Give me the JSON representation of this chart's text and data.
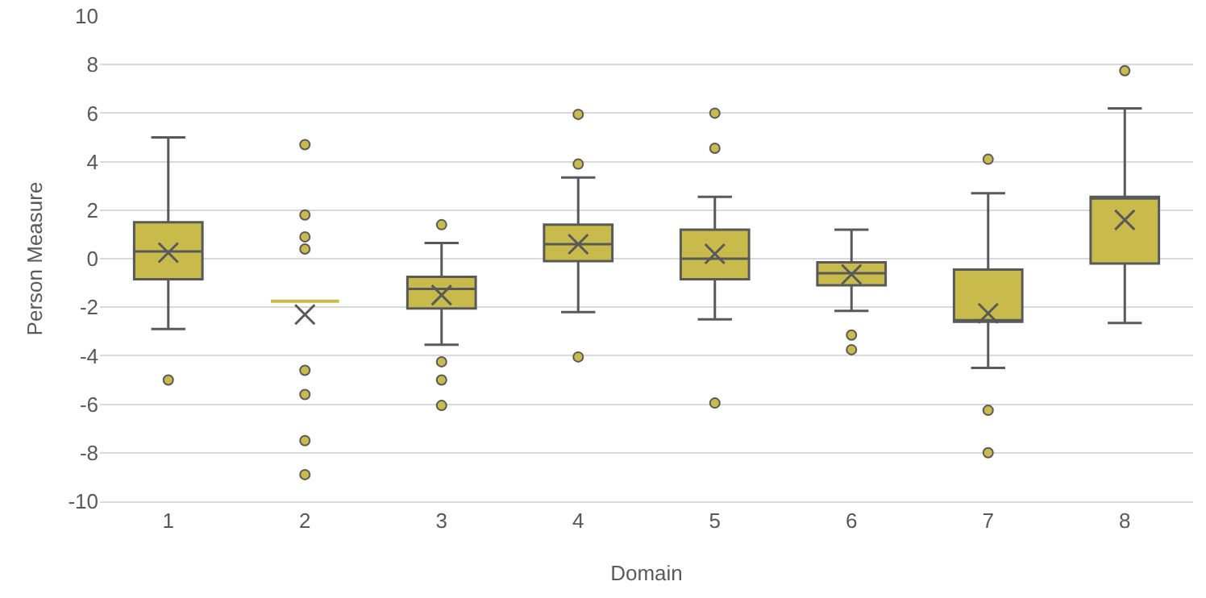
{
  "chart_data": {
    "type": "box",
    "xlabel": "Domain",
    "ylabel": "Person Measure",
    "categories": [
      "1",
      "2",
      "3",
      "4",
      "5",
      "6",
      "7",
      "8"
    ],
    "color": "#c9ba4c",
    "ylim": [
      -10,
      10
    ],
    "yticks": [
      -10,
      -8,
      -6,
      -4,
      -2,
      0,
      2,
      4,
      6,
      8,
      10
    ],
    "grid": "y",
    "boxes": [
      {
        "low": -2.9,
        "q1": -0.85,
        "median": 0.3,
        "q3": 1.5,
        "high": 5.0,
        "mean": 0.25,
        "outliers": [
          -5.0
        ]
      },
      {
        "low": -1.75,
        "q1": -1.75,
        "median": -1.75,
        "q3": -1.75,
        "high": -1.75,
        "mean": -2.3,
        "outliers": [
          4.7,
          1.8,
          0.9,
          0.4,
          -4.6,
          -5.6,
          -7.5,
          -8.9
        ]
      },
      {
        "low": -3.55,
        "q1": -2.05,
        "median": -1.25,
        "q3": -0.75,
        "high": 0.65,
        "mean": -1.5,
        "outliers": [
          1.4,
          -4.25,
          -5.0,
          -6.05
        ]
      },
      {
        "low": -2.2,
        "q1": -0.1,
        "median": 0.6,
        "q3": 1.4,
        "high": 3.35,
        "mean": 0.6,
        "outliers": [
          5.95,
          3.9,
          -4.05
        ]
      },
      {
        "low": -2.5,
        "q1": -0.85,
        "median": 0.0,
        "q3": 1.2,
        "high": 2.55,
        "mean": 0.2,
        "outliers": [
          6.0,
          4.55,
          -5.95
        ]
      },
      {
        "low": -2.15,
        "q1": -1.1,
        "median": -0.6,
        "q3": -0.15,
        "high": 1.2,
        "mean": -0.65,
        "outliers": [
          -3.15,
          -3.75
        ]
      },
      {
        "low": -4.5,
        "q1": -2.6,
        "median": -2.6,
        "q3": -0.45,
        "high": 2.7,
        "mean": -2.25,
        "outliers": [
          4.1,
          -6.25,
          -8.0
        ]
      },
      {
        "low": -2.65,
        "q1": -0.2,
        "median": 2.55,
        "q3": 2.55,
        "high": 6.2,
        "mean": 1.6,
        "outliers": [
          7.75
        ]
      }
    ]
  }
}
